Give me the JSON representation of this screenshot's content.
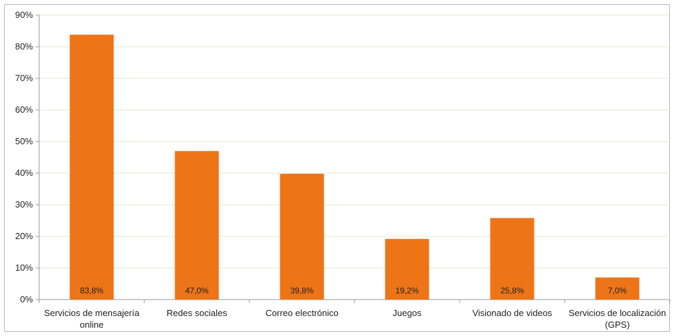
{
  "chart_data": {
    "type": "bar",
    "title": "",
    "xlabel": "",
    "ylabel": "",
    "categories": [
      [
        "Servicios de mensajería",
        "online"
      ],
      [
        "Redes sociales"
      ],
      [
        "Correo electrónico"
      ],
      [
        "Juegos"
      ],
      [
        "Visionado de videos"
      ],
      [
        "Servicios de localización",
        "(GPS)"
      ]
    ],
    "values": [
      83.8,
      47.0,
      39.8,
      19.2,
      25.8,
      7.0
    ],
    "data_labels": [
      "83,8%",
      "47,0%",
      "39,8%",
      "19,2%",
      "25,8%",
      "7,0%"
    ],
    "ylim": [
      0,
      90
    ],
    "yticks": [
      0,
      10,
      20,
      30,
      40,
      50,
      60,
      70,
      80,
      90
    ],
    "ytick_labels": [
      "0%",
      "10%",
      "20%",
      "30%",
      "40%",
      "50%",
      "60%",
      "70%",
      "80%",
      "90%"
    ],
    "grid": true,
    "legend": "none",
    "colors": {
      "bar": "#ED7417",
      "grid": "#E6E6CF",
      "axis": "#9A9A9A",
      "text": "#222222"
    }
  }
}
